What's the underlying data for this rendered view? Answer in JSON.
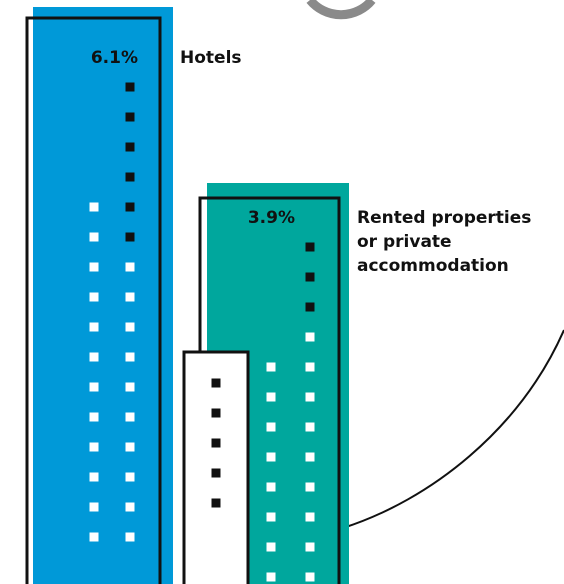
{
  "buildings": [
    {
      "value": "6.1%",
      "label": "Hotels"
    },
    {
      "value": "3.9%",
      "label": "Rented properties or private accommodation"
    }
  ]
}
